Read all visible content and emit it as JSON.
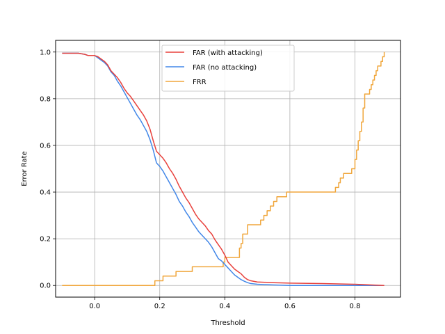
{
  "chart_data": {
    "type": "line",
    "xlabel": "Threshold",
    "ylabel": "Error Rate",
    "xlim": [
      -0.12,
      0.94
    ],
    "ylim": [
      -0.05,
      1.05
    ],
    "xticks": [
      "0.0",
      "0.2",
      "0.4",
      "0.6",
      "0.8"
    ],
    "xtick_values": [
      0.0,
      0.2,
      0.4,
      0.6,
      0.8
    ],
    "yticks": [
      "0.0",
      "0.2",
      "0.4",
      "0.6",
      "0.8",
      "1.0"
    ],
    "ytick_values": [
      0.0,
      0.2,
      0.4,
      0.6,
      0.8,
      1.0
    ],
    "grid": true,
    "legend_position": "top-center",
    "series": [
      {
        "name": "FAR (with attacking)",
        "color": "#e8413c",
        "points": [
          [
            -0.1,
            0.995
          ],
          [
            -0.05,
            0.995
          ],
          [
            -0.03,
            0.99
          ],
          [
            -0.02,
            0.985
          ],
          [
            0.0,
            0.985
          ],
          [
            0.01,
            0.98
          ],
          [
            0.02,
            0.97
          ],
          [
            0.03,
            0.96
          ],
          [
            0.04,
            0.945
          ],
          [
            0.05,
            0.92
          ],
          [
            0.06,
            0.905
          ],
          [
            0.07,
            0.89
          ],
          [
            0.08,
            0.87
          ],
          [
            0.09,
            0.845
          ],
          [
            0.1,
            0.825
          ],
          [
            0.11,
            0.81
          ],
          [
            0.12,
            0.79
          ],
          [
            0.13,
            0.77
          ],
          [
            0.14,
            0.75
          ],
          [
            0.15,
            0.73
          ],
          [
            0.16,
            0.705
          ],
          [
            0.17,
            0.67
          ],
          [
            0.18,
            0.62
          ],
          [
            0.19,
            0.575
          ],
          [
            0.2,
            0.56
          ],
          [
            0.21,
            0.545
          ],
          [
            0.22,
            0.525
          ],
          [
            0.23,
            0.5
          ],
          [
            0.24,
            0.48
          ],
          [
            0.25,
            0.455
          ],
          [
            0.26,
            0.425
          ],
          [
            0.27,
            0.4
          ],
          [
            0.28,
            0.375
          ],
          [
            0.29,
            0.355
          ],
          [
            0.3,
            0.33
          ],
          [
            0.31,
            0.305
          ],
          [
            0.32,
            0.285
          ],
          [
            0.33,
            0.27
          ],
          [
            0.34,
            0.255
          ],
          [
            0.35,
            0.235
          ],
          [
            0.36,
            0.22
          ],
          [
            0.37,
            0.195
          ],
          [
            0.38,
            0.175
          ],
          [
            0.39,
            0.155
          ],
          [
            0.4,
            0.13
          ],
          [
            0.41,
            0.1
          ],
          [
            0.42,
            0.085
          ],
          [
            0.43,
            0.07
          ],
          [
            0.44,
            0.06
          ],
          [
            0.45,
            0.05
          ],
          [
            0.46,
            0.035
          ],
          [
            0.47,
            0.025
          ],
          [
            0.48,
            0.02
          ],
          [
            0.5,
            0.015
          ],
          [
            0.55,
            0.012
          ],
          [
            0.6,
            0.01
          ],
          [
            0.7,
            0.008
          ],
          [
            0.8,
            0.005
          ],
          [
            0.85,
            0.002
          ],
          [
            0.89,
            0.0
          ]
        ]
      },
      {
        "name": "FAR (no attacking)",
        "color": "#4287e8",
        "points": [
          [
            -0.1,
            0.995
          ],
          [
            -0.05,
            0.995
          ],
          [
            -0.03,
            0.99
          ],
          [
            -0.02,
            0.985
          ],
          [
            0.0,
            0.985
          ],
          [
            0.01,
            0.975
          ],
          [
            0.02,
            0.965
          ],
          [
            0.03,
            0.955
          ],
          [
            0.04,
            0.94
          ],
          [
            0.05,
            0.915
          ],
          [
            0.06,
            0.9
          ],
          [
            0.07,
            0.875
          ],
          [
            0.08,
            0.855
          ],
          [
            0.09,
            0.83
          ],
          [
            0.1,
            0.805
          ],
          [
            0.11,
            0.78
          ],
          [
            0.12,
            0.755
          ],
          [
            0.13,
            0.73
          ],
          [
            0.14,
            0.71
          ],
          [
            0.15,
            0.685
          ],
          [
            0.16,
            0.66
          ],
          [
            0.17,
            0.625
          ],
          [
            0.18,
            0.58
          ],
          [
            0.19,
            0.525
          ],
          [
            0.2,
            0.51
          ],
          [
            0.21,
            0.49
          ],
          [
            0.22,
            0.465
          ],
          [
            0.23,
            0.44
          ],
          [
            0.24,
            0.415
          ],
          [
            0.25,
            0.39
          ],
          [
            0.26,
            0.36
          ],
          [
            0.27,
            0.34
          ],
          [
            0.28,
            0.315
          ],
          [
            0.29,
            0.295
          ],
          [
            0.3,
            0.27
          ],
          [
            0.31,
            0.25
          ],
          [
            0.32,
            0.23
          ],
          [
            0.33,
            0.215
          ],
          [
            0.34,
            0.2
          ],
          [
            0.35,
            0.185
          ],
          [
            0.36,
            0.165
          ],
          [
            0.37,
            0.14
          ],
          [
            0.38,
            0.115
          ],
          [
            0.39,
            0.105
          ],
          [
            0.4,
            0.09
          ],
          [
            0.41,
            0.075
          ],
          [
            0.42,
            0.06
          ],
          [
            0.43,
            0.045
          ],
          [
            0.44,
            0.035
          ],
          [
            0.45,
            0.025
          ],
          [
            0.46,
            0.018
          ],
          [
            0.47,
            0.012
          ],
          [
            0.48,
            0.008
          ],
          [
            0.5,
            0.005
          ],
          [
            0.55,
            0.002
          ],
          [
            0.6,
            0.0
          ],
          [
            0.7,
            0.0
          ],
          [
            0.8,
            0.0
          ],
          [
            0.89,
            0.0
          ]
        ]
      },
      {
        "name": "FRR",
        "color": "#f0a63b",
        "points": [
          [
            -0.1,
            0.0
          ],
          [
            0.185,
            0.0
          ],
          [
            0.185,
            0.02
          ],
          [
            0.21,
            0.02
          ],
          [
            0.21,
            0.04
          ],
          [
            0.25,
            0.04
          ],
          [
            0.25,
            0.06
          ],
          [
            0.3,
            0.06
          ],
          [
            0.3,
            0.08
          ],
          [
            0.395,
            0.08
          ],
          [
            0.395,
            0.1
          ],
          [
            0.4,
            0.1
          ],
          [
            0.4,
            0.12
          ],
          [
            0.445,
            0.12
          ],
          [
            0.445,
            0.16
          ],
          [
            0.45,
            0.16
          ],
          [
            0.45,
            0.18
          ],
          [
            0.455,
            0.18
          ],
          [
            0.455,
            0.22
          ],
          [
            0.47,
            0.22
          ],
          [
            0.47,
            0.26
          ],
          [
            0.51,
            0.26
          ],
          [
            0.51,
            0.28
          ],
          [
            0.52,
            0.28
          ],
          [
            0.52,
            0.3
          ],
          [
            0.53,
            0.3
          ],
          [
            0.53,
            0.32
          ],
          [
            0.54,
            0.32
          ],
          [
            0.54,
            0.34
          ],
          [
            0.55,
            0.34
          ],
          [
            0.55,
            0.36
          ],
          [
            0.56,
            0.36
          ],
          [
            0.56,
            0.38
          ],
          [
            0.59,
            0.38
          ],
          [
            0.59,
            0.4
          ],
          [
            0.74,
            0.4
          ],
          [
            0.74,
            0.42
          ],
          [
            0.75,
            0.42
          ],
          [
            0.75,
            0.44
          ],
          [
            0.755,
            0.44
          ],
          [
            0.755,
            0.46
          ],
          [
            0.765,
            0.46
          ],
          [
            0.765,
            0.48
          ],
          [
            0.79,
            0.48
          ],
          [
            0.79,
            0.5
          ],
          [
            0.8,
            0.5
          ],
          [
            0.8,
            0.54
          ],
          [
            0.805,
            0.54
          ],
          [
            0.805,
            0.58
          ],
          [
            0.81,
            0.58
          ],
          [
            0.81,
            0.62
          ],
          [
            0.815,
            0.62
          ],
          [
            0.815,
            0.66
          ],
          [
            0.82,
            0.66
          ],
          [
            0.82,
            0.7
          ],
          [
            0.825,
            0.7
          ],
          [
            0.825,
            0.76
          ],
          [
            0.83,
            0.76
          ],
          [
            0.83,
            0.82
          ],
          [
            0.845,
            0.82
          ],
          [
            0.845,
            0.84
          ],
          [
            0.85,
            0.84
          ],
          [
            0.85,
            0.86
          ],
          [
            0.855,
            0.86
          ],
          [
            0.855,
            0.88
          ],
          [
            0.86,
            0.88
          ],
          [
            0.86,
            0.9
          ],
          [
            0.865,
            0.9
          ],
          [
            0.865,
            0.92
          ],
          [
            0.87,
            0.92
          ],
          [
            0.87,
            0.94
          ],
          [
            0.88,
            0.94
          ],
          [
            0.88,
            0.96
          ],
          [
            0.885,
            0.96
          ],
          [
            0.885,
            0.98
          ],
          [
            0.89,
            0.98
          ],
          [
            0.89,
            1.0
          ]
        ]
      }
    ]
  }
}
